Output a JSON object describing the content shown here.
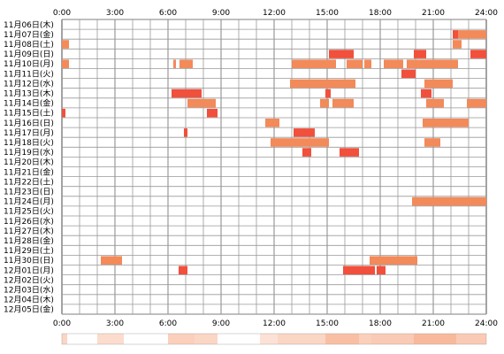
{
  "chart_data": {
    "type": "timeline",
    "x_ticks": [
      "0:00",
      "3:00",
      "6:00",
      "9:00",
      "12:00",
      "15:00",
      "18:00",
      "21:00",
      "24:00"
    ],
    "xlim": [
      0,
      24
    ],
    "grid": true,
    "rows": [
      "11月06日(木)",
      "11月07日(金)",
      "11月08日(土)",
      "11月09日(日)",
      "11月10日(月)",
      "11月11日(火)",
      "11月12日(水)",
      "11月13日(木)",
      "11月14日(金)",
      "11月15日(土)",
      "11月16日(日)",
      "11月17日(月)",
      "11月18日(火)",
      "11月19日(水)",
      "11月20日(木)",
      "11月21日(金)",
      "11月22日(土)",
      "11月23日(日)",
      "11月24日(月)",
      "11月25日(火)",
      "11月26日(水)",
      "11月27日(木)",
      "11月28日(金)",
      "11月29日(土)",
      "11月30日(日)",
      "12月01日(月)",
      "12月02日(火)",
      "12月03日(水)",
      "12月04日(木)",
      "12月05日(金)"
    ],
    "colors": {
      "bar_light": "#f28a5a",
      "bar_dark": "#f0503c",
      "grid": "#999999",
      "axis": "#333333"
    },
    "segments": [
      {
        "row": 1,
        "start": 22.4,
        "end": 24.0,
        "tone": "light"
      },
      {
        "row": 1,
        "start": 22.1,
        "end": 22.4,
        "tone": "dark"
      },
      {
        "row": 2,
        "start": 0.0,
        "end": 0.4,
        "tone": "light"
      },
      {
        "row": 2,
        "start": 22.1,
        "end": 22.6,
        "tone": "light"
      },
      {
        "row": 3,
        "start": 15.1,
        "end": 16.5,
        "tone": "dark"
      },
      {
        "row": 3,
        "start": 19.9,
        "end": 20.6,
        "tone": "dark"
      },
      {
        "row": 3,
        "start": 23.1,
        "end": 24.0,
        "tone": "dark"
      },
      {
        "row": 4,
        "start": 0.0,
        "end": 0.4,
        "tone": "light"
      },
      {
        "row": 4,
        "start": 6.3,
        "end": 6.45,
        "tone": "light"
      },
      {
        "row": 4,
        "start": 6.65,
        "end": 7.4,
        "tone": "light"
      },
      {
        "row": 4,
        "start": 13.0,
        "end": 15.5,
        "tone": "light"
      },
      {
        "row": 4,
        "start": 16.1,
        "end": 17.0,
        "tone": "light"
      },
      {
        "row": 4,
        "start": 17.1,
        "end": 17.5,
        "tone": "light"
      },
      {
        "row": 4,
        "start": 18.2,
        "end": 19.3,
        "tone": "light"
      },
      {
        "row": 4,
        "start": 19.5,
        "end": 22.4,
        "tone": "light"
      },
      {
        "row": 5,
        "start": 19.2,
        "end": 20.0,
        "tone": "dark"
      },
      {
        "row": 6,
        "start": 12.9,
        "end": 16.6,
        "tone": "light"
      },
      {
        "row": 6,
        "start": 20.5,
        "end": 22.1,
        "tone": "light"
      },
      {
        "row": 7,
        "start": 6.2,
        "end": 7.9,
        "tone": "dark"
      },
      {
        "row": 7,
        "start": 14.9,
        "end": 15.2,
        "tone": "dark"
      },
      {
        "row": 7,
        "start": 20.3,
        "end": 20.9,
        "tone": "dark"
      },
      {
        "row": 8,
        "start": 7.1,
        "end": 8.7,
        "tone": "light"
      },
      {
        "row": 8,
        "start": 14.6,
        "end": 15.1,
        "tone": "light"
      },
      {
        "row": 8,
        "start": 15.3,
        "end": 16.5,
        "tone": "light"
      },
      {
        "row": 8,
        "start": 20.6,
        "end": 21.6,
        "tone": "light"
      },
      {
        "row": 8,
        "start": 22.9,
        "end": 24.0,
        "tone": "light"
      },
      {
        "row": 9,
        "start": 0.0,
        "end": 0.2,
        "tone": "dark"
      },
      {
        "row": 9,
        "start": 8.2,
        "end": 8.8,
        "tone": "dark"
      },
      {
        "row": 10,
        "start": 11.5,
        "end": 12.3,
        "tone": "light"
      },
      {
        "row": 10,
        "start": 20.4,
        "end": 23.0,
        "tone": "light"
      },
      {
        "row": 11,
        "start": 6.9,
        "end": 7.1,
        "tone": "dark"
      },
      {
        "row": 11,
        "start": 13.1,
        "end": 14.3,
        "tone": "dark"
      },
      {
        "row": 12,
        "start": 11.8,
        "end": 15.1,
        "tone": "light"
      },
      {
        "row": 12,
        "start": 20.5,
        "end": 21.4,
        "tone": "light"
      },
      {
        "row": 13,
        "start": 13.6,
        "end": 14.1,
        "tone": "dark"
      },
      {
        "row": 13,
        "start": 15.7,
        "end": 16.8,
        "tone": "dark"
      },
      {
        "row": 18,
        "start": 19.8,
        "end": 24.0,
        "tone": "light"
      },
      {
        "row": 24,
        "start": 2.2,
        "end": 3.4,
        "tone": "light"
      },
      {
        "row": 24,
        "start": 17.4,
        "end": 20.1,
        "tone": "light"
      },
      {
        "row": 25,
        "start": 6.6,
        "end": 7.1,
        "tone": "dark"
      },
      {
        "row": 25,
        "start": 15.9,
        "end": 17.7,
        "tone": "dark"
      },
      {
        "row": 25,
        "start": 17.8,
        "end": 18.3,
        "tone": "dark"
      }
    ],
    "density_strip": [
      {
        "start": 0.0,
        "end": 0.3,
        "opacity": 0.35
      },
      {
        "start": 2.0,
        "end": 3.5,
        "opacity": 0.3
      },
      {
        "start": 6.0,
        "end": 7.5,
        "opacity": 0.4
      },
      {
        "start": 7.5,
        "end": 8.8,
        "opacity": 0.35
      },
      {
        "start": 11.2,
        "end": 12.2,
        "opacity": 0.25
      },
      {
        "start": 12.2,
        "end": 14.9,
        "opacity": 0.35
      },
      {
        "start": 14.9,
        "end": 16.8,
        "opacity": 0.55
      },
      {
        "start": 16.8,
        "end": 17.5,
        "opacity": 0.4
      },
      {
        "start": 17.5,
        "end": 19.9,
        "opacity": 0.45
      },
      {
        "start": 19.9,
        "end": 22.3,
        "opacity": 0.6
      },
      {
        "start": 22.3,
        "end": 24.0,
        "opacity": 0.45
      }
    ]
  }
}
